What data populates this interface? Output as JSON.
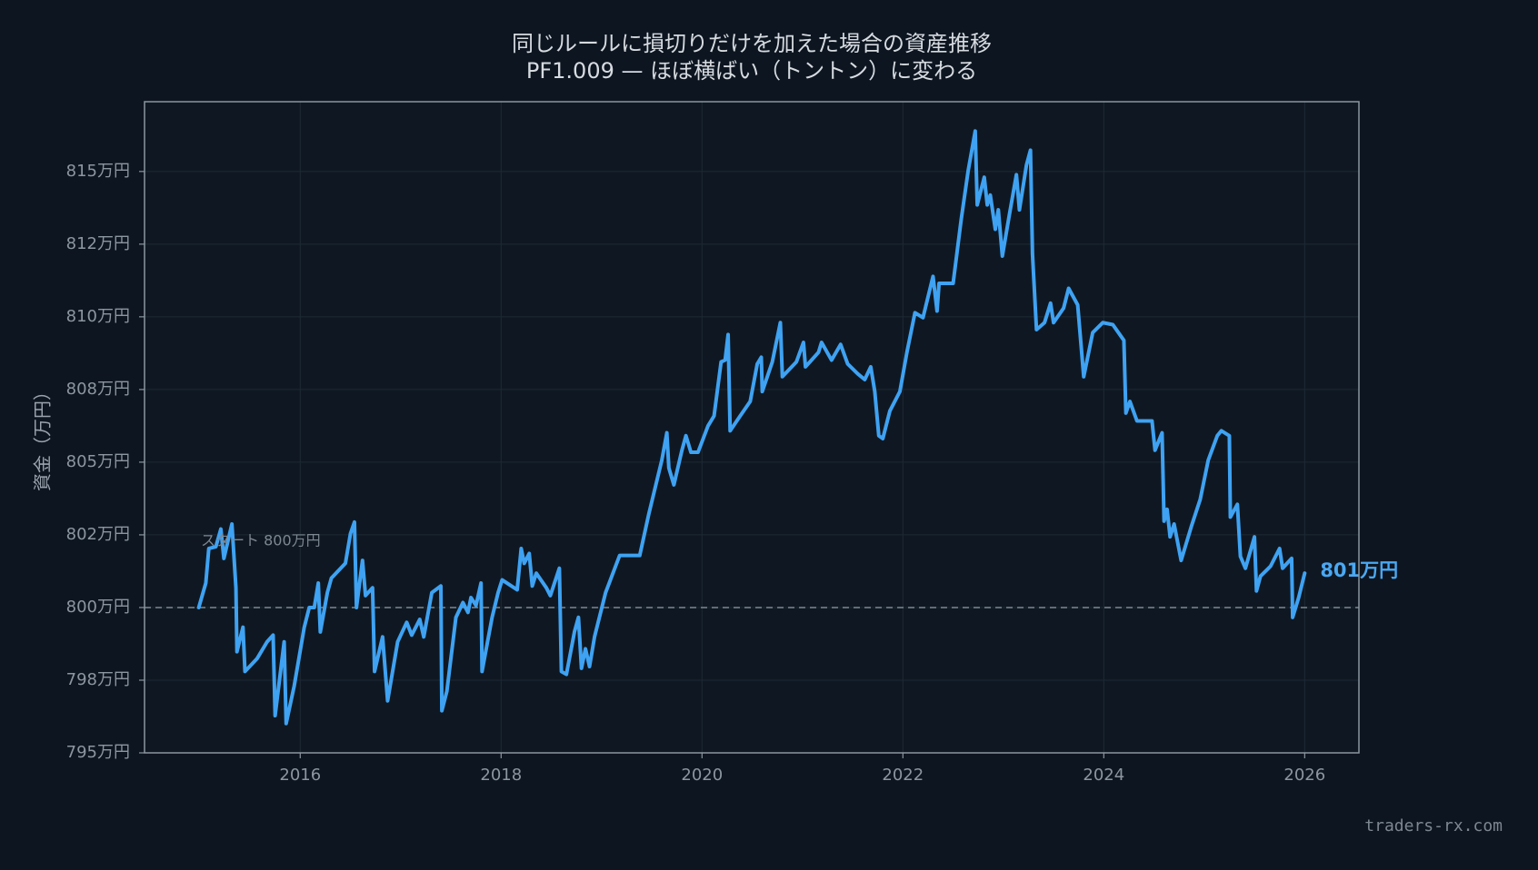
{
  "chart_data": {
    "type": "line",
    "title": "同じルールに損切りだけを加えた場合の資産推移",
    "subtitle": "PF1.009 — ほぼ横ばい（トントン）に変わる",
    "y_label": "資金（万円）",
    "annotation": "スタート 800万円",
    "end_label": "801万円",
    "watermark": "traders-rx.com",
    "reference_line": 800,
    "grid": true,
    "xlim": [
      2014.45,
      2026.54
    ],
    "xticks": [
      2016,
      2018,
      2020,
      2022,
      2024,
      2026
    ],
    "ylim": [
      795,
      817.4
    ],
    "yticks": [
      {
        "value": 795,
        "label": "795万円"
      },
      {
        "value": 797.5,
        "label": "798万円"
      },
      {
        "value": 800,
        "label": "800万円"
      },
      {
        "value": 802.5,
        "label": "802万円"
      },
      {
        "value": 805,
        "label": "805万円"
      },
      {
        "value": 807.5,
        "label": "808万円"
      },
      {
        "value": 810,
        "label": "810万円"
      },
      {
        "value": 812.5,
        "label": "812万円"
      },
      {
        "value": 815,
        "label": "815万円"
      }
    ],
    "x": [
      2014.99,
      2015.06,
      2015.09,
      2015.16,
      2015.21,
      2015.24,
      2015.32,
      2015.36,
      2015.37,
      2015.43,
      2015.45,
      2015.57,
      2015.67,
      2015.73,
      2015.75,
      2015.81,
      2015.84,
      2015.86,
      2015.94,
      2016.04,
      2016.09,
      2016.14,
      2016.18,
      2016.2,
      2016.27,
      2016.31,
      2016.45,
      2016.5,
      2016.54,
      2016.56,
      2016.62,
      2016.65,
      2016.72,
      2016.74,
      2016.82,
      2016.87,
      2016.97,
      2017.06,
      2017.11,
      2017.19,
      2017.23,
      2017.31,
      2017.4,
      2017.41,
      2017.46,
      2017.55,
      2017.62,
      2017.67,
      2017.7,
      2017.75,
      2017.8,
      2017.81,
      2017.91,
      2017.97,
      2018.01,
      2018.16,
      2018.2,
      2018.23,
      2018.28,
      2018.31,
      2018.35,
      2018.45,
      2018.49,
      2018.58,
      2018.6,
      2018.65,
      2018.73,
      2018.77,
      2018.8,
      2018.84,
      2018.88,
      2018.93,
      2019.04,
      2019.18,
      2019.38,
      2019.47,
      2019.6,
      2019.65,
      2019.67,
      2019.72,
      2019.8,
      2019.84,
      2019.89,
      2019.96,
      2020.06,
      2020.12,
      2020.19,
      2020.23,
      2020.26,
      2020.28,
      2020.38,
      2020.48,
      2020.55,
      2020.59,
      2020.6,
      2020.7,
      2020.78,
      2020.8,
      2020.94,
      2021.01,
      2021.03,
      2021.16,
      2021.19,
      2021.29,
      2021.38,
      2021.45,
      2021.55,
      2021.62,
      2021.68,
      2021.72,
      2021.76,
      2021.8,
      2021.87,
      2021.97,
      2022.04,
      2022.12,
      2022.2,
      2022.3,
      2022.34,
      2022.36,
      2022.5,
      2022.58,
      2022.65,
      2022.72,
      2022.74,
      2022.81,
      2022.84,
      2022.87,
      2022.92,
      2022.95,
      2022.99,
      2023.06,
      2023.13,
      2023.16,
      2023.23,
      2023.27,
      2023.29,
      2023.33,
      2023.41,
      2023.47,
      2023.5,
      2023.6,
      2023.65,
      2023.74,
      2023.8,
      2023.89,
      2023.99,
      2024.09,
      2024.2,
      2024.22,
      2024.26,
      2024.33,
      2024.48,
      2024.51,
      2024.58,
      2024.6,
      2024.63,
      2024.66,
      2024.7,
      2024.77,
      2024.87,
      2024.96,
      2025.04,
      2025.13,
      2025.17,
      2025.25,
      2025.26,
      2025.33,
      2025.36,
      2025.41,
      2025.5,
      2025.52,
      2025.56,
      2025.66,
      2025.75,
      2025.78,
      2025.87,
      2025.88,
      2025.94,
      2026.0
    ],
    "series": [
      {
        "name": "資金",
        "color": "#3fa2f2",
        "values": [
          800.0,
          800.84,
          802.03,
          802.09,
          802.7,
          801.69,
          802.87,
          800.68,
          798.48,
          799.32,
          797.8,
          798.24,
          798.82,
          799.05,
          796.28,
          797.97,
          798.82,
          796.01,
          797.3,
          799.32,
          800.0,
          800.0,
          800.84,
          799.16,
          800.51,
          801.01,
          801.52,
          802.54,
          802.94,
          800.0,
          801.62,
          800.41,
          800.68,
          797.8,
          798.99,
          796.79,
          798.82,
          799.49,
          799.05,
          799.59,
          798.99,
          800.51,
          800.74,
          796.45,
          797.12,
          799.66,
          800.17,
          799.83,
          800.34,
          800.07,
          800.84,
          797.8,
          799.66,
          800.51,
          800.95,
          800.61,
          802.03,
          801.52,
          801.86,
          800.74,
          801.18,
          800.68,
          800.41,
          801.35,
          797.8,
          797.7,
          799.16,
          799.66,
          797.91,
          798.58,
          797.97,
          798.99,
          800.51,
          801.79,
          801.79,
          803.21,
          805.07,
          806.01,
          804.8,
          804.22,
          805.41,
          805.91,
          805.34,
          805.34,
          806.25,
          806.59,
          808.45,
          808.51,
          809.39,
          806.08,
          806.59,
          807.09,
          808.38,
          808.61,
          807.43,
          808.45,
          809.8,
          807.94,
          808.45,
          809.12,
          808.28,
          808.78,
          809.12,
          808.51,
          809.05,
          808.38,
          808.04,
          807.84,
          808.28,
          807.43,
          805.91,
          805.81,
          806.76,
          807.43,
          808.78,
          810.14,
          809.97,
          811.39,
          810.2,
          811.15,
          811.15,
          813.34,
          815.03,
          816.39,
          813.85,
          814.8,
          813.85,
          814.19,
          813.01,
          813.68,
          812.09,
          813.51,
          814.89,
          813.68,
          815.22,
          815.73,
          812.16,
          809.56,
          809.8,
          810.47,
          809.8,
          810.3,
          810.98,
          810.41,
          807.94,
          809.46,
          809.8,
          809.73,
          809.19,
          806.69,
          807.09,
          806.42,
          806.42,
          805.41,
          806.01,
          802.97,
          803.38,
          802.43,
          802.87,
          801.62,
          802.77,
          803.72,
          805.07,
          805.91,
          806.08,
          805.91,
          803.11,
          803.55,
          801.76,
          801.35,
          802.43,
          800.57,
          801.08,
          801.42,
          802.03,
          801.35,
          801.69,
          799.66,
          800.34,
          801.18
        ]
      }
    ]
  }
}
